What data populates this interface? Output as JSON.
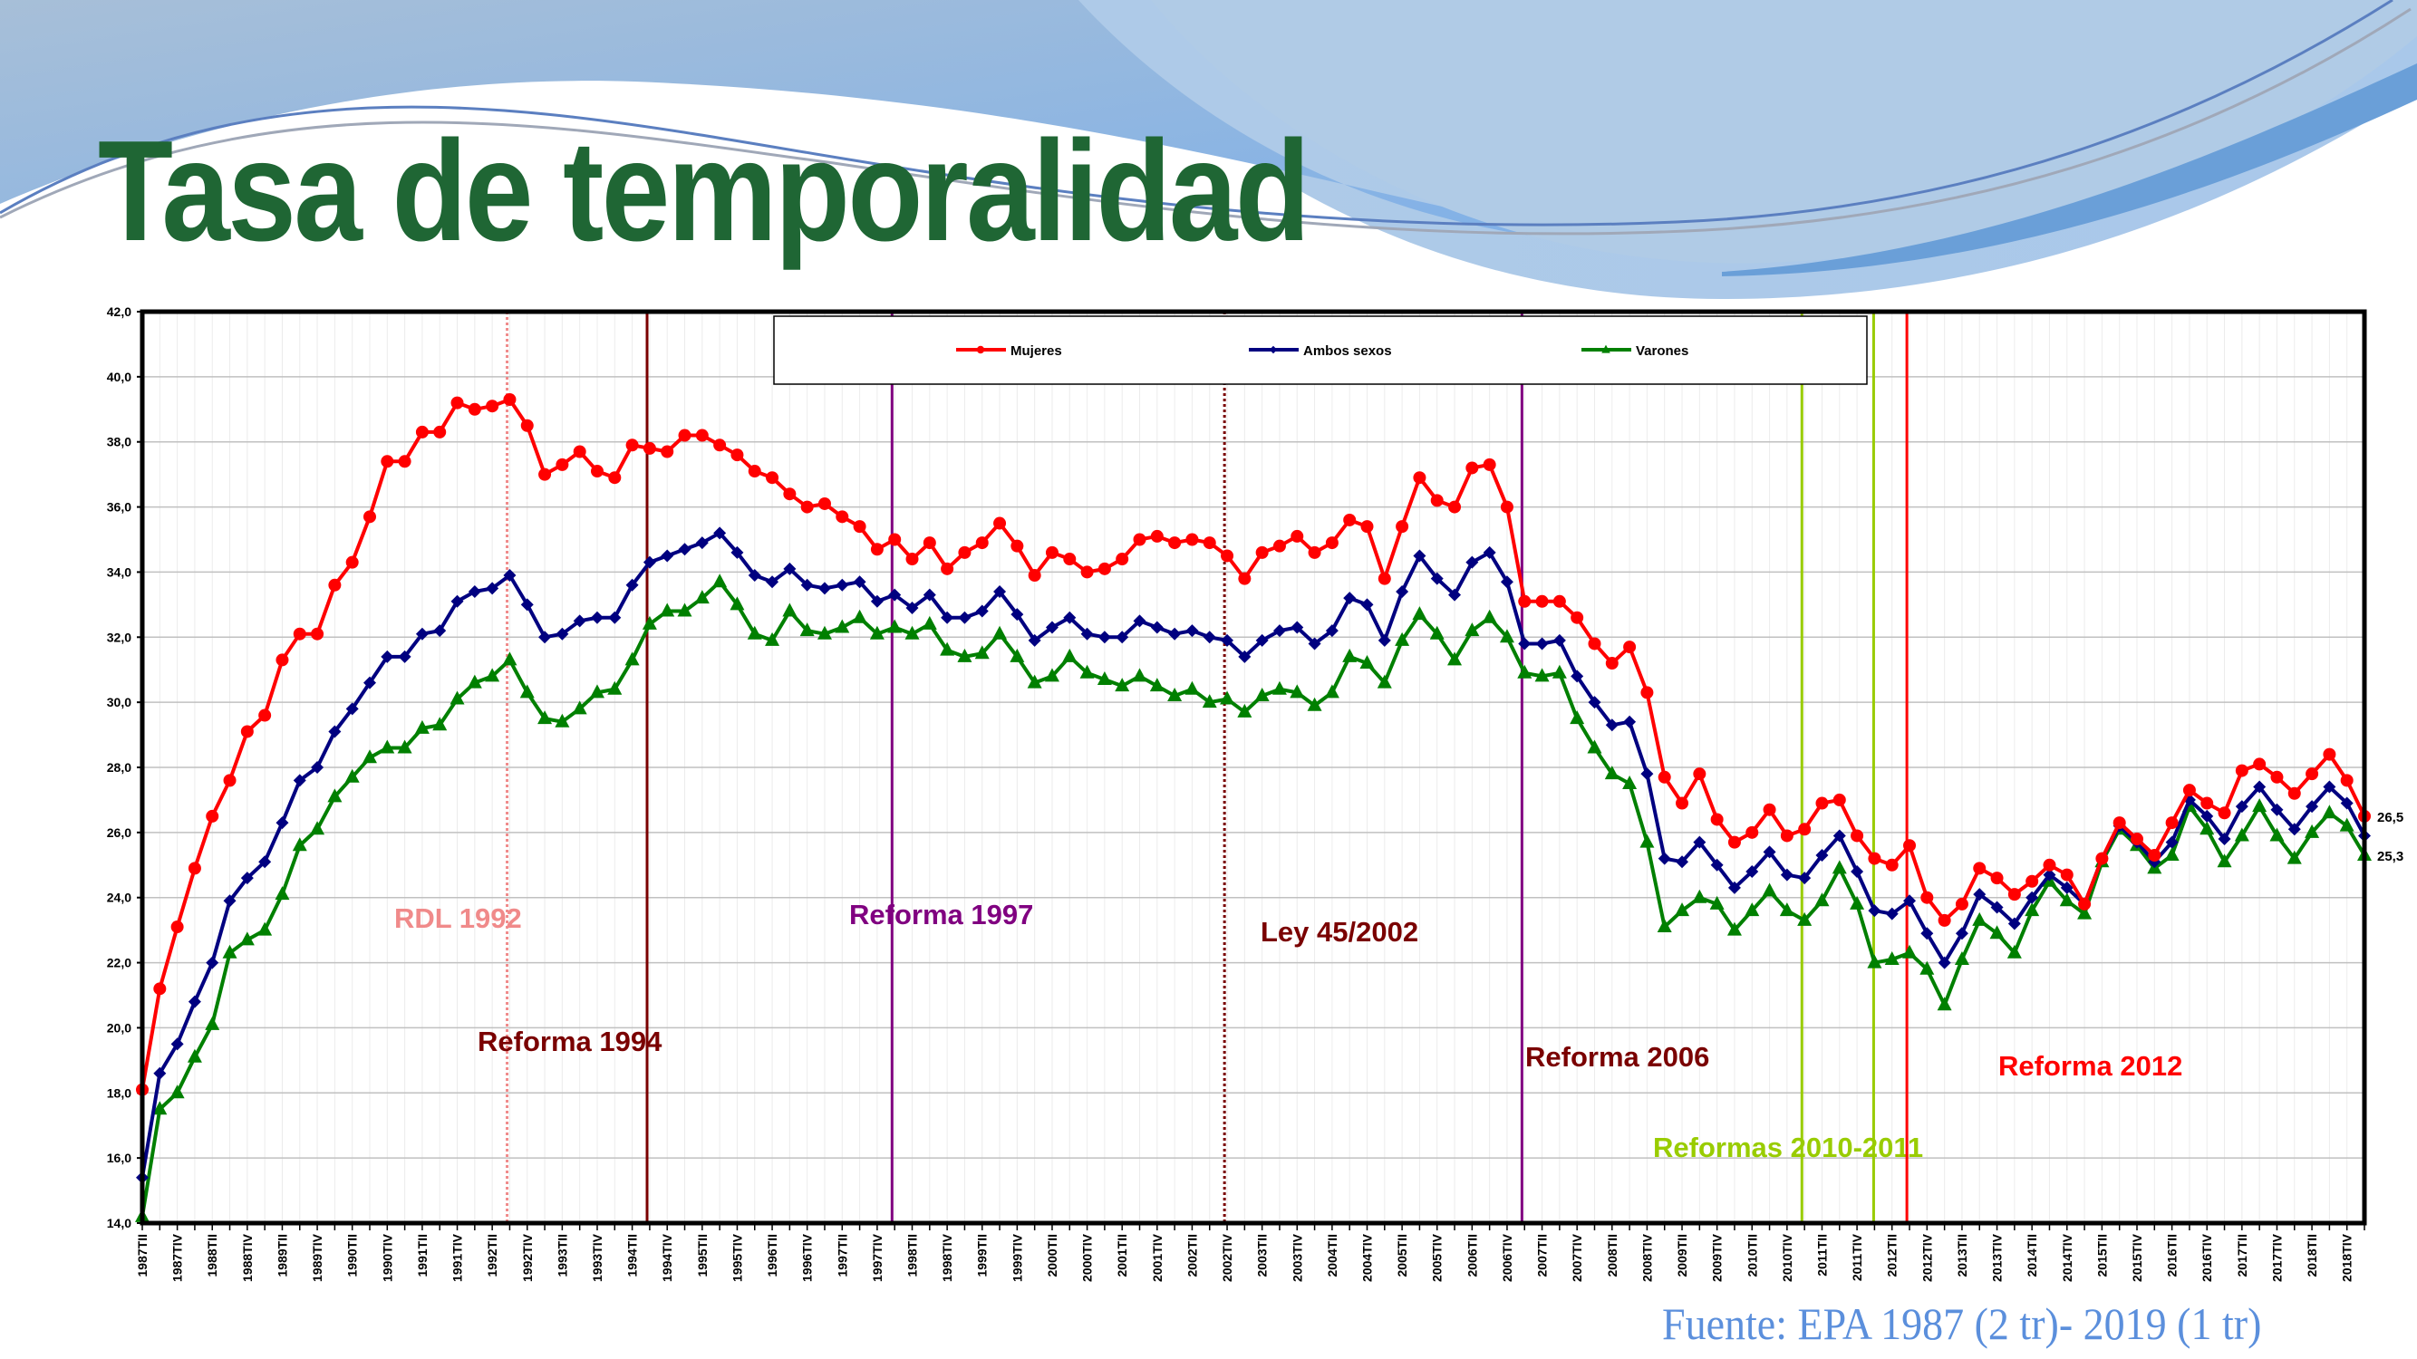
{
  "title": "Tasa de temporalidad",
  "source": "Fuente: EPA 1987 (2 tr)- 2019 (1 tr)",
  "colors": {
    "title": "#1f6634",
    "source": "#5b8fdc",
    "header_wave": "#8fb4e0"
  },
  "chart_data": {
    "type": "line",
    "title": "",
    "xlabel": "",
    "ylabel": "",
    "ylim": [
      14,
      42
    ],
    "y_ticks": [
      "14,0",
      "16,0",
      "18,0",
      "20,0",
      "22,0",
      "24,0",
      "26,0",
      "28,0",
      "30,0",
      "32,0",
      "34,0",
      "36,0",
      "38,0",
      "40,0",
      "42,0"
    ],
    "x_range": [
      "1987TII",
      "2019TI"
    ],
    "x_tick_labels": [
      "1987TII",
      "1987TIV",
      "1988TII",
      "1988TIV",
      "1989TII",
      "1989TIV",
      "1990TII",
      "1990TIV",
      "1991TII",
      "1991TIV",
      "1992TII",
      "1992TIV",
      "1993TII",
      "1993TIV",
      "1994TII",
      "1994TIV",
      "1995TII",
      "1995TIV",
      "1996TII",
      "1996TIV",
      "1997TII",
      "1997TIV",
      "1998TII",
      "1998TIV",
      "1999TII",
      "1999TIV",
      "2000TII",
      "2000TIV",
      "2001TII",
      "2001TIV",
      "2002TII",
      "2002TIV",
      "2003TII",
      "2003TIV",
      "2004TII",
      "2004TIV",
      "2005TII",
      "2005TIV",
      "2006TII",
      "2006TIV",
      "2007TII",
      "2007TIV",
      "2008TII",
      "2008TIV",
      "2009TII",
      "2009TIV",
      "2010TII",
      "2010TIV",
      "2011TII",
      "2011TIV",
      "2012TII",
      "2012TIV",
      "2013TII",
      "2013TIV",
      "2014TII",
      "2014TIV",
      "2015TII",
      "2015TIV",
      "2016TII",
      "2016TIV",
      "2017TII",
      "2017TIV",
      "2018TII",
      "2018TIV"
    ],
    "grid": true,
    "legend_position": "top-center",
    "series": [
      {
        "name": "Mujeres",
        "color": "#ff0000",
        "marker": "circle",
        "values": [
          18.1,
          21.2,
          23.1,
          24.9,
          26.5,
          27.6,
          29.1,
          29.6,
          31.3,
          32.1,
          32.1,
          33.6,
          34.3,
          35.7,
          37.4,
          37.4,
          38.3,
          38.3,
          39.2,
          39.0,
          39.1,
          39.3,
          38.5,
          37.0,
          37.3,
          37.7,
          37.1,
          36.9,
          37.9,
          37.8,
          37.7,
          38.2,
          38.2,
          37.9,
          37.6,
          37.1,
          36.9,
          36.4,
          36.0,
          36.1,
          35.7,
          35.4,
          34.7,
          35.0,
          34.4,
          34.9,
          34.1,
          34.6,
          34.9,
          35.5,
          34.8,
          33.9,
          34.6,
          34.4,
          34.0,
          34.1,
          34.4,
          35.0,
          35.1,
          34.9,
          35.0,
          34.9,
          34.5,
          33.8,
          34.6,
          34.8,
          35.1,
          34.6,
          34.9,
          35.6,
          35.4,
          33.8,
          35.4,
          36.9,
          36.2,
          36.0,
          37.2,
          37.3,
          36.0,
          33.1,
          33.1,
          33.1,
          32.6,
          31.8,
          31.2,
          31.7,
          30.3,
          27.7,
          26.9,
          27.8,
          26.4,
          25.7,
          26.0,
          26.7,
          25.9,
          26.1,
          26.9,
          27.0,
          25.9,
          25.2,
          25.0,
          25.6,
          24.0,
          23.3,
          23.8,
          24.9,
          24.6,
          24.1,
          24.5,
          25.0,
          24.7,
          23.8,
          25.2,
          26.3,
          25.8,
          25.3,
          26.3,
          27.3,
          26.9,
          26.6,
          27.9,
          28.1,
          27.7,
          27.2,
          27.8,
          28.4,
          27.6,
          26.5
        ],
        "end_label": "26,5"
      },
      {
        "name": "Ambos sexos",
        "color": "#000080",
        "marker": "diamond",
        "values": [
          15.4,
          18.6,
          19.5,
          20.8,
          22.0,
          23.9,
          24.6,
          25.1,
          26.3,
          27.6,
          28.0,
          29.1,
          29.8,
          30.6,
          31.4,
          31.4,
          32.1,
          32.2,
          33.1,
          33.4,
          33.5,
          33.9,
          33.0,
          32.0,
          32.1,
          32.5,
          32.6,
          32.6,
          33.6,
          34.3,
          34.5,
          34.7,
          34.9,
          35.2,
          34.6,
          33.9,
          33.7,
          34.1,
          33.6,
          33.5,
          33.6,
          33.7,
          33.1,
          33.3,
          32.9,
          33.3,
          32.6,
          32.6,
          32.8,
          33.4,
          32.7,
          31.9,
          32.3,
          32.6,
          32.1,
          32.0,
          32.0,
          32.5,
          32.3,
          32.1,
          32.2,
          32.0,
          31.9,
          31.4,
          31.9,
          32.2,
          32.3,
          31.8,
          32.2,
          33.2,
          33.0,
          31.9,
          33.4,
          34.5,
          33.8,
          33.3,
          34.3,
          34.6,
          33.7,
          31.8,
          31.8,
          31.9,
          30.8,
          30.0,
          29.3,
          29.4,
          27.8,
          25.2,
          25.1,
          25.7,
          25.0,
          24.3,
          24.8,
          25.4,
          24.7,
          24.6,
          25.3,
          25.9,
          24.8,
          23.6,
          23.5,
          23.9,
          22.9,
          22.0,
          22.9,
          24.1,
          23.7,
          23.2,
          24.0,
          24.7,
          24.3,
          23.8,
          25.2,
          26.2,
          25.7,
          25.1,
          25.7,
          27.0,
          26.5,
          25.8,
          26.8,
          27.4,
          26.7,
          26.1,
          26.8,
          27.4,
          26.9,
          25.9
        ]
      },
      {
        "name": "Varones",
        "color": "#008000",
        "marker": "triangle",
        "values": [
          14.2,
          17.5,
          18.0,
          19.1,
          20.1,
          22.3,
          22.7,
          23.0,
          24.1,
          25.6,
          26.1,
          27.1,
          27.7,
          28.3,
          28.6,
          28.6,
          29.2,
          29.3,
          30.1,
          30.6,
          30.8,
          31.3,
          30.3,
          29.5,
          29.4,
          29.8,
          30.3,
          30.4,
          31.3,
          32.4,
          32.8,
          32.8,
          33.2,
          33.7,
          33.0,
          32.1,
          31.9,
          32.8,
          32.2,
          32.1,
          32.3,
          32.6,
          32.1,
          32.3,
          32.1,
          32.4,
          31.6,
          31.4,
          31.5,
          32.1,
          31.4,
          30.6,
          30.8,
          31.4,
          30.9,
          30.7,
          30.5,
          30.8,
          30.5,
          30.2,
          30.4,
          30.0,
          30.1,
          29.7,
          30.2,
          30.4,
          30.3,
          29.9,
          30.3,
          31.4,
          31.2,
          30.6,
          31.9,
          32.7,
          32.1,
          31.3,
          32.2,
          32.6,
          32.0,
          30.9,
          30.8,
          30.9,
          29.5,
          28.6,
          27.8,
          27.5,
          25.7,
          23.1,
          23.6,
          24.0,
          23.8,
          23.0,
          23.6,
          24.2,
          23.6,
          23.3,
          23.9,
          24.9,
          23.8,
          22.0,
          22.1,
          22.3,
          21.8,
          20.7,
          22.1,
          23.3,
          22.9,
          22.3,
          23.6,
          24.5,
          23.9,
          23.5,
          25.1,
          26.1,
          25.6,
          24.9,
          25.3,
          26.8,
          26.1,
          25.1,
          25.9,
          26.8,
          25.9,
          25.2,
          26.0,
          26.6,
          26.2,
          25.3
        ],
        "end_label": "25,3",
        "end_label_color": "#00a050"
      }
    ],
    "annotations": [
      {
        "label": "RDL 1992",
        "at_quarter": "1992TIII",
        "color": "#f08a8a",
        "line_style": "dotted"
      },
      {
        "label": "Reforma 1994",
        "at_quarter": "1994TIII",
        "color": "#7a0000",
        "line_style": "solid"
      },
      {
        "label": "Reforma 1997",
        "at_quarter": "1998TI",
        "color": "#800080",
        "line_style": "solid"
      },
      {
        "label": "Ley 45/2002",
        "at_quarter": "2002TIV",
        "color": "#7a0000",
        "line_style": "dotted"
      },
      {
        "label": "Reforma 2006",
        "at_quarter": "2007TI",
        "color": "#800080",
        "line_style": "solid",
        "label_color": "#7a0000"
      },
      {
        "label": "Reformas 2010-2011",
        "at_quarter": "2011TI",
        "at_quarter_2": "2012TI",
        "color": "#99cc00",
        "line_style": "solid"
      },
      {
        "label": "Reforma 2012",
        "at_quarter": "2012TIII",
        "color": "#ff0000",
        "line_style": "solid"
      }
    ]
  }
}
